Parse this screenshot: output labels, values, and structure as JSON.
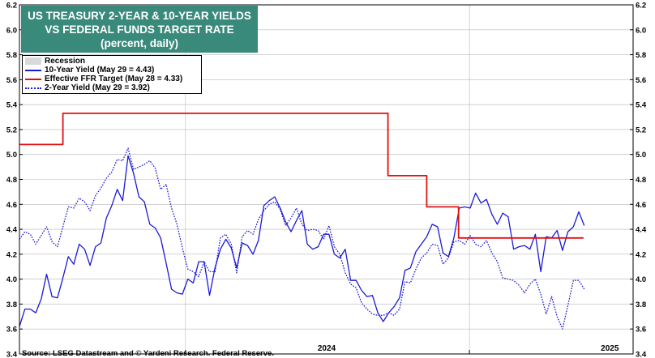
{
  "chart_data": {
    "type": "line",
    "title_lines": [
      "US TREASURY 2-YEAR & 10-YEAR YIELDS",
      "VS FEDERAL FUNDS TARGET RATE",
      "(percent, daily)"
    ],
    "source": "Source: LSEG Datastream and © Yardeni Research. Federal Reserve.",
    "ylim": [
      3.4,
      6.2
    ],
    "yticks": [
      "3.4",
      "3.6",
      "3.8",
      "4.0",
      "4.2",
      "4.4",
      "4.6",
      "4.8",
      "5.0",
      "5.2",
      "5.4",
      "5.6",
      "5.8",
      "6.0",
      "6.2"
    ],
    "xlim": [
      "2023-06-01",
      "2025-07-31"
    ],
    "xtick_labels": [
      {
        "label": "2024",
        "date": "2024-07-01"
      },
      {
        "label": "2025",
        "date": "2025-07-01"
      }
    ],
    "year_boundaries": [
      "2024-01-01",
      "2025-01-01"
    ],
    "grid": true,
    "legend_position": "top-left",
    "legend": [
      {
        "label": "Recession",
        "style": "swatch"
      },
      {
        "label": "10-Year Yield (May 29 = 4.43)",
        "style": "solid"
      },
      {
        "label": "Effective FFR Target (May 28 = 4.33)",
        "style": "solid"
      },
      {
        "label": "2-Year Yield (May 29 = 3.92)",
        "style": "dotted"
      }
    ],
    "colors": {
      "ten_year": "#1a1ad6",
      "ffr": "#e01010",
      "two_year": "#1a1ad6",
      "recession": "#d9d9d9",
      "title_bg": "#3a8a7c"
    },
    "series": [
      {
        "name": "10-Year Yield",
        "key": "ten_year",
        "x": [
          "2023-06-01",
          "2023-06-08",
          "2023-06-15",
          "2023-06-22",
          "2023-06-29",
          "2023-07-06",
          "2023-07-13",
          "2023-07-20",
          "2023-07-27",
          "2023-08-03",
          "2023-08-10",
          "2023-08-17",
          "2023-08-24",
          "2023-08-31",
          "2023-09-07",
          "2023-09-14",
          "2023-09-21",
          "2023-09-28",
          "2023-10-05",
          "2023-10-12",
          "2023-10-19",
          "2023-10-26",
          "2023-11-02",
          "2023-11-09",
          "2023-11-16",
          "2023-11-23",
          "2023-11-30",
          "2023-12-07",
          "2023-12-14",
          "2023-12-21",
          "2023-12-28",
          "2024-01-04",
          "2024-01-11",
          "2024-01-18",
          "2024-01-25",
          "2024-02-01",
          "2024-02-08",
          "2024-02-15",
          "2024-02-22",
          "2024-02-29",
          "2024-03-07",
          "2024-03-14",
          "2024-03-21",
          "2024-03-28",
          "2024-04-04",
          "2024-04-11",
          "2024-04-18",
          "2024-04-25",
          "2024-05-02",
          "2024-05-09",
          "2024-05-16",
          "2024-05-23",
          "2024-05-30",
          "2024-06-06",
          "2024-06-13",
          "2024-06-20",
          "2024-06-27",
          "2024-07-04",
          "2024-07-11",
          "2024-07-18",
          "2024-07-25",
          "2024-08-01",
          "2024-08-08",
          "2024-08-15",
          "2024-08-22",
          "2024-08-29",
          "2024-09-05",
          "2024-09-12",
          "2024-09-19",
          "2024-09-26",
          "2024-10-03",
          "2024-10-10",
          "2024-10-17",
          "2024-10-24",
          "2024-10-31",
          "2024-11-07",
          "2024-11-14",
          "2024-11-21",
          "2024-11-28",
          "2024-12-05",
          "2024-12-12",
          "2024-12-19",
          "2024-12-26",
          "2025-01-02",
          "2025-01-09",
          "2025-01-16",
          "2025-01-23",
          "2025-01-30",
          "2025-02-06",
          "2025-02-13",
          "2025-02-20",
          "2025-02-27",
          "2025-03-06",
          "2025-03-13",
          "2025-03-20",
          "2025-03-27",
          "2025-04-03",
          "2025-04-10",
          "2025-04-17",
          "2025-04-24",
          "2025-05-01",
          "2025-05-08",
          "2025-05-15",
          "2025-05-22",
          "2025-05-29"
        ],
        "values": [
          3.62,
          3.76,
          3.76,
          3.73,
          3.84,
          4.04,
          3.86,
          3.85,
          4.01,
          4.18,
          4.12,
          4.28,
          4.24,
          4.11,
          4.26,
          4.29,
          4.49,
          4.59,
          4.72,
          4.63,
          4.99,
          4.85,
          4.66,
          4.62,
          4.44,
          4.41,
          4.33,
          4.13,
          3.92,
          3.89,
          3.88,
          4.0,
          3.97,
          4.14,
          4.14,
          3.87,
          4.09,
          4.24,
          4.32,
          4.25,
          4.09,
          4.29,
          4.27,
          4.2,
          4.31,
          4.59,
          4.63,
          4.66,
          4.57,
          4.46,
          4.38,
          4.47,
          4.55,
          4.28,
          4.24,
          4.26,
          4.36,
          4.36,
          4.2,
          4.17,
          4.24,
          3.99,
          3.99,
          3.91,
          3.86,
          3.87,
          3.73,
          3.66,
          3.73,
          3.78,
          3.85,
          4.07,
          4.09,
          4.22,
          4.28,
          4.34,
          4.44,
          4.42,
          4.21,
          4.18,
          4.33,
          4.57,
          4.58,
          4.57,
          4.69,
          4.61,
          4.64,
          4.52,
          4.44,
          4.53,
          4.5,
          4.24,
          4.26,
          4.27,
          4.24,
          4.36,
          4.06,
          4.34,
          4.33,
          4.39,
          4.23,
          4.38,
          4.42,
          4.54,
          4.43
        ]
      },
      {
        "name": "Effective FFR Target",
        "key": "ffr",
        "step": true,
        "x": [
          "2023-06-01",
          "2023-07-27",
          "2024-09-18",
          "2024-11-07",
          "2024-12-18",
          "2025-05-28"
        ],
        "values": [
          5.08,
          5.33,
          4.83,
          4.58,
          4.33,
          4.33
        ]
      },
      {
        "name": "2-Year Yield",
        "key": "two_year",
        "x": [
          "2023-06-01",
          "2023-06-08",
          "2023-06-15",
          "2023-06-22",
          "2023-06-29",
          "2023-07-06",
          "2023-07-13",
          "2023-07-20",
          "2023-07-27",
          "2023-08-03",
          "2023-08-10",
          "2023-08-17",
          "2023-08-24",
          "2023-08-31",
          "2023-09-07",
          "2023-09-14",
          "2023-09-21",
          "2023-09-28",
          "2023-10-05",
          "2023-10-12",
          "2023-10-19",
          "2023-10-26",
          "2023-11-02",
          "2023-11-09",
          "2023-11-16",
          "2023-11-23",
          "2023-11-30",
          "2023-12-07",
          "2023-12-14",
          "2023-12-21",
          "2023-12-28",
          "2024-01-04",
          "2024-01-11",
          "2024-01-18",
          "2024-01-25",
          "2024-02-01",
          "2024-02-08",
          "2024-02-15",
          "2024-02-22",
          "2024-02-29",
          "2024-03-07",
          "2024-03-14",
          "2024-03-21",
          "2024-03-28",
          "2024-04-04",
          "2024-04-11",
          "2024-04-18",
          "2024-04-25",
          "2024-05-02",
          "2024-05-09",
          "2024-05-16",
          "2024-05-23",
          "2024-05-30",
          "2024-06-06",
          "2024-06-13",
          "2024-06-20",
          "2024-06-27",
          "2024-07-04",
          "2024-07-11",
          "2024-07-18",
          "2024-07-25",
          "2024-08-01",
          "2024-08-08",
          "2024-08-15",
          "2024-08-22",
          "2024-08-29",
          "2024-09-05",
          "2024-09-12",
          "2024-09-19",
          "2024-09-26",
          "2024-10-03",
          "2024-10-10",
          "2024-10-17",
          "2024-10-24",
          "2024-10-31",
          "2024-11-07",
          "2024-11-14",
          "2024-11-21",
          "2024-11-28",
          "2024-12-05",
          "2024-12-12",
          "2024-12-19",
          "2024-12-26",
          "2025-01-02",
          "2025-01-09",
          "2025-01-16",
          "2025-01-23",
          "2025-01-30",
          "2025-02-06",
          "2025-02-13",
          "2025-02-20",
          "2025-02-27",
          "2025-03-06",
          "2025-03-13",
          "2025-03-20",
          "2025-03-27",
          "2025-04-03",
          "2025-04-10",
          "2025-04-17",
          "2025-04-24",
          "2025-05-01",
          "2025-05-08",
          "2025-05-15",
          "2025-05-22",
          "2025-05-29"
        ],
        "values": [
          4.32,
          4.38,
          4.36,
          4.28,
          4.35,
          4.42,
          4.3,
          4.26,
          4.42,
          4.58,
          4.57,
          4.65,
          4.62,
          4.55,
          4.67,
          4.73,
          4.81,
          4.86,
          4.96,
          4.95,
          5.05,
          4.88,
          4.9,
          4.92,
          4.95,
          4.89,
          4.72,
          4.76,
          4.57,
          4.44,
          4.25,
          4.08,
          4.06,
          4.02,
          4.14,
          4.06,
          4.06,
          4.33,
          4.36,
          4.28,
          4.05,
          4.34,
          4.39,
          4.36,
          4.48,
          4.55,
          4.6,
          4.62,
          4.56,
          4.43,
          4.49,
          4.57,
          4.44,
          4.39,
          4.4,
          4.39,
          4.32,
          4.43,
          4.26,
          4.2,
          4.05,
          3.96,
          3.93,
          3.81,
          3.76,
          3.72,
          3.71,
          3.71,
          3.73,
          3.71,
          3.76,
          3.98,
          3.97,
          4.08,
          4.17,
          4.21,
          4.28,
          4.27,
          4.12,
          4.17,
          4.3,
          4.31,
          4.28,
          4.35,
          4.28,
          4.26,
          4.31,
          4.21,
          4.14,
          4.01,
          4.0,
          3.99,
          3.95,
          3.89,
          3.96,
          4.0,
          3.88,
          3.72,
          3.86,
          3.7,
          3.6,
          3.79,
          3.99,
          3.99,
          3.92
        ]
      }
    ]
  }
}
